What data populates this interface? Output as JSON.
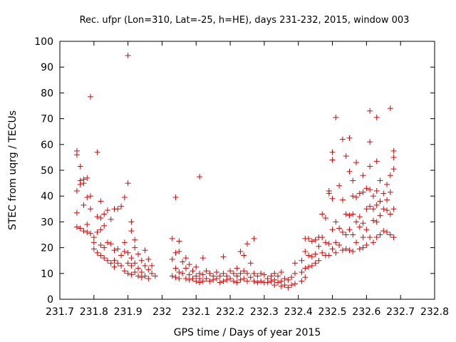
{
  "chart_data": {
    "type": "scatter",
    "title": "Rec. ufpr (Lon=310, Lat=-25, h=HE), days 231-232, 2015, window 003",
    "xlabel": "GPS time / Days of year 2015",
    "ylabel": "STEC from uqrg / TECUs",
    "xlim": [
      231.7,
      232.8
    ],
    "ylim": [
      0,
      100
    ],
    "xticks": [
      231.7,
      231.8,
      231.9,
      232.0,
      232.1,
      232.2,
      232.3,
      232.4,
      232.5,
      232.6,
      232.7,
      232.8
    ],
    "xtick_labels": [
      "231.7",
      "231.8",
      "231.9",
      "232",
      "232.1",
      "232.2",
      "232.3",
      "232.4",
      "232.5",
      "232.6",
      "232.7",
      "232.8"
    ],
    "yticks": [
      0,
      10,
      20,
      30,
      40,
      50,
      60,
      70,
      80,
      90,
      100
    ],
    "ytick_labels": [
      "0",
      "10",
      "20",
      "30",
      "40",
      "50",
      "60",
      "70",
      "80",
      "90",
      "100"
    ],
    "marker": "+",
    "color": "#e00000",
    "grid": false,
    "series": [
      {
        "points": [
          [
            231.75,
            57.5
          ],
          [
            231.75,
            56
          ],
          [
            231.75,
            42
          ],
          [
            231.75,
            33.5
          ],
          [
            231.75,
            28
          ],
          [
            231.76,
            27.5
          ],
          [
            231.76,
            51.5
          ],
          [
            231.76,
            46
          ],
          [
            231.76,
            44.5
          ],
          [
            231.77,
            45
          ],
          [
            231.77,
            46.5
          ],
          [
            231.77,
            36.5
          ],
          [
            231.77,
            26.5
          ],
          [
            231.78,
            47
          ],
          [
            231.78,
            39.5
          ],
          [
            231.78,
            29
          ],
          [
            231.78,
            26
          ],
          [
            231.79,
            40
          ],
          [
            231.79,
            78.5
          ],
          [
            231.79,
            35
          ],
          [
            231.79,
            25.5
          ],
          [
            231.8,
            24
          ],
          [
            231.8,
            22
          ],
          [
            231.8,
            19.5
          ],
          [
            231.81,
            57
          ],
          [
            231.81,
            32
          ],
          [
            231.81,
            26
          ],
          [
            231.81,
            18
          ],
          [
            231.82,
            38
          ],
          [
            231.82,
            31.5
          ],
          [
            231.82,
            27
          ],
          [
            231.82,
            21
          ],
          [
            231.82,
            17
          ],
          [
            231.83,
            33
          ],
          [
            231.83,
            28.5
          ],
          [
            231.83,
            20
          ],
          [
            231.83,
            16
          ],
          [
            231.84,
            34.5
          ],
          [
            231.84,
            22
          ],
          [
            231.84,
            15
          ],
          [
            231.85,
            31
          ],
          [
            231.85,
            21.5
          ],
          [
            231.85,
            14
          ],
          [
            231.86,
            35
          ],
          [
            231.86,
            19
          ],
          [
            231.86,
            15
          ],
          [
            231.86,
            12.5
          ],
          [
            231.87,
            35
          ],
          [
            231.87,
            19.5
          ],
          [
            231.87,
            14
          ],
          [
            231.88,
            36
          ],
          [
            231.88,
            17
          ],
          [
            231.88,
            13
          ],
          [
            231.89,
            39.5
          ],
          [
            231.89,
            22
          ],
          [
            231.89,
            18.5
          ],
          [
            231.89,
            11
          ],
          [
            231.9,
            94.5
          ],
          [
            231.9,
            45
          ],
          [
            231.9,
            18
          ],
          [
            231.9,
            14
          ],
          [
            231.9,
            10
          ],
          [
            231.91,
            30
          ],
          [
            231.91,
            26.5
          ],
          [
            231.91,
            16
          ],
          [
            231.91,
            13
          ],
          [
            231.91,
            9.5
          ],
          [
            231.92,
            23
          ],
          [
            231.92,
            20
          ],
          [
            231.92,
            14
          ],
          [
            231.92,
            10.5
          ],
          [
            231.93,
            17.5
          ],
          [
            231.93,
            12
          ],
          [
            231.93,
            9
          ],
          [
            231.94,
            15
          ],
          [
            231.94,
            10.5
          ],
          [
            231.94,
            8.5
          ],
          [
            231.95,
            19
          ],
          [
            231.95,
            13
          ],
          [
            231.95,
            9
          ],
          [
            231.96,
            15.5
          ],
          [
            231.96,
            11.5
          ],
          [
            231.96,
            8
          ],
          [
            231.97,
            13
          ],
          [
            231.97,
            10
          ],
          [
            231.98,
            9
          ],
          [
            232.03,
            23.5
          ],
          [
            232.03,
            15.5
          ],
          [
            232.03,
            9
          ],
          [
            232.04,
            39.5
          ],
          [
            232.04,
            18
          ],
          [
            232.04,
            12
          ],
          [
            232.04,
            8.5
          ],
          [
            232.05,
            22.5
          ],
          [
            232.05,
            18.5
          ],
          [
            232.05,
            10.5
          ],
          [
            232.05,
            8
          ],
          [
            232.06,
            14.5
          ],
          [
            232.06,
            10
          ],
          [
            232.07,
            16
          ],
          [
            232.07,
            12
          ],
          [
            232.07,
            8
          ],
          [
            232.08,
            13.5
          ],
          [
            232.08,
            9.5
          ],
          [
            232.08,
            7.5
          ],
          [
            232.09,
            11
          ],
          [
            232.09,
            8
          ],
          [
            232.1,
            12.5
          ],
          [
            232.1,
            9
          ],
          [
            232.1,
            7
          ],
          [
            232.11,
            47.5
          ],
          [
            232.11,
            10
          ],
          [
            232.11,
            8
          ],
          [
            232.11,
            6.5
          ],
          [
            232.12,
            16
          ],
          [
            232.12,
            9.5
          ],
          [
            232.12,
            7
          ],
          [
            232.13,
            11
          ],
          [
            232.13,
            8
          ],
          [
            232.14,
            10
          ],
          [
            232.14,
            7
          ],
          [
            232.15,
            9
          ],
          [
            232.15,
            7.5
          ],
          [
            232.16,
            10.5
          ],
          [
            232.16,
            8
          ],
          [
            232.17,
            9
          ],
          [
            232.17,
            6.5
          ],
          [
            232.18,
            16.5
          ],
          [
            232.18,
            10
          ],
          [
            232.18,
            7
          ],
          [
            232.19,
            9
          ],
          [
            232.19,
            7.5
          ],
          [
            232.2,
            11
          ],
          [
            232.2,
            8
          ],
          [
            232.21,
            10
          ],
          [
            232.21,
            7
          ],
          [
            232.22,
            12
          ],
          [
            232.22,
            9
          ],
          [
            232.22,
            6.5
          ],
          [
            232.23,
            18.5
          ],
          [
            232.23,
            10
          ],
          [
            232.23,
            7.5
          ],
          [
            232.24,
            17
          ],
          [
            232.24,
            11
          ],
          [
            232.24,
            8
          ],
          [
            232.25,
            21.5
          ],
          [
            232.25,
            10
          ],
          [
            232.25,
            7
          ],
          [
            232.26,
            14
          ],
          [
            232.26,
            8.5
          ],
          [
            232.27,
            23.5
          ],
          [
            232.27,
            10
          ],
          [
            232.27,
            7
          ],
          [
            232.28,
            9
          ],
          [
            232.28,
            6.5
          ],
          [
            232.29,
            10
          ],
          [
            232.29,
            7
          ],
          [
            232.3,
            9.5
          ],
          [
            232.3,
            6.5
          ],
          [
            232.31,
            8
          ],
          [
            232.31,
            6.5
          ],
          [
            232.32,
            9
          ],
          [
            232.32,
            7
          ],
          [
            232.33,
            10
          ],
          [
            232.33,
            7.5
          ],
          [
            232.33,
            5.5
          ],
          [
            232.34,
            9
          ],
          [
            232.34,
            6.5
          ],
          [
            232.35,
            10.5
          ],
          [
            232.35,
            7
          ],
          [
            232.35,
            5
          ],
          [
            232.36,
            8
          ],
          [
            232.36,
            5.5
          ],
          [
            232.37,
            7.5
          ],
          [
            232.37,
            4.5
          ],
          [
            232.38,
            8.5
          ],
          [
            232.38,
            5.5
          ],
          [
            232.39,
            14
          ],
          [
            232.39,
            10
          ],
          [
            232.39,
            6
          ],
          [
            232.41,
            15
          ],
          [
            232.41,
            10.5
          ],
          [
            232.41,
            7
          ],
          [
            232.42,
            23.5
          ],
          [
            232.42,
            18.5
          ],
          [
            232.42,
            12
          ],
          [
            232.42,
            8.5
          ],
          [
            232.43,
            23.5
          ],
          [
            232.43,
            17
          ],
          [
            232.43,
            12.5
          ],
          [
            232.44,
            22.5
          ],
          [
            232.44,
            16.5
          ],
          [
            232.44,
            13
          ],
          [
            232.45,
            23
          ],
          [
            232.45,
            17.5
          ],
          [
            232.45,
            14
          ],
          [
            232.46,
            24
          ],
          [
            232.46,
            20.5
          ],
          [
            232.46,
            15
          ],
          [
            232.47,
            33
          ],
          [
            232.47,
            24
          ],
          [
            232.47,
            18
          ],
          [
            232.48,
            31.5
          ],
          [
            232.48,
            22
          ],
          [
            232.48,
            17
          ],
          [
            232.49,
            42
          ],
          [
            232.49,
            41
          ],
          [
            232.49,
            21.5
          ],
          [
            232.49,
            17
          ],
          [
            232.5,
            57
          ],
          [
            232.5,
            54
          ],
          [
            232.5,
            39
          ],
          [
            232.5,
            27
          ],
          [
            232.5,
            19.5
          ],
          [
            232.51,
            70.5
          ],
          [
            232.51,
            30
          ],
          [
            232.51,
            22
          ],
          [
            232.51,
            18
          ],
          [
            232.52,
            44
          ],
          [
            232.52,
            27.5
          ],
          [
            232.52,
            21
          ],
          [
            232.53,
            62
          ],
          [
            232.53,
            38.5
          ],
          [
            232.53,
            26
          ],
          [
            232.53,
            19
          ],
          [
            232.54,
            55.5
          ],
          [
            232.54,
            33
          ],
          [
            232.54,
            25
          ],
          [
            232.54,
            19.5
          ],
          [
            232.55,
            62.5
          ],
          [
            232.55,
            49.5
          ],
          [
            232.55,
            32.5
          ],
          [
            232.55,
            27
          ],
          [
            232.55,
            19
          ],
          [
            232.56,
            46
          ],
          [
            232.56,
            40
          ],
          [
            232.56,
            33
          ],
          [
            232.56,
            25
          ],
          [
            232.56,
            18.5
          ],
          [
            232.57,
            53
          ],
          [
            232.57,
            39.5
          ],
          [
            232.57,
            30
          ],
          [
            232.57,
            22
          ],
          [
            232.58,
            41
          ],
          [
            232.58,
            32
          ],
          [
            232.58,
            28
          ],
          [
            232.58,
            19.5
          ],
          [
            232.59,
            48
          ],
          [
            232.59,
            41.5
          ],
          [
            232.59,
            29.5
          ],
          [
            232.59,
            24
          ],
          [
            232.59,
            20
          ],
          [
            232.6,
            43
          ],
          [
            232.6,
            35
          ],
          [
            232.6,
            27
          ],
          [
            232.6,
            21
          ],
          [
            232.61,
            73
          ],
          [
            232.61,
            61
          ],
          [
            232.61,
            51.5
          ],
          [
            232.61,
            42.5
          ],
          [
            232.61,
            36
          ],
          [
            232.61,
            24
          ],
          [
            232.62,
            40
          ],
          [
            232.62,
            35
          ],
          [
            232.62,
            30.5
          ],
          [
            232.62,
            22
          ],
          [
            232.63,
            70.5
          ],
          [
            232.63,
            53.5
          ],
          [
            232.63,
            42
          ],
          [
            232.63,
            36.5
          ],
          [
            232.63,
            30
          ],
          [
            232.63,
            24
          ],
          [
            232.64,
            46
          ],
          [
            232.64,
            38
          ],
          [
            232.64,
            32.5
          ],
          [
            232.64,
            25
          ],
          [
            232.65,
            41
          ],
          [
            232.65,
            35
          ],
          [
            232.65,
            26.5
          ],
          [
            232.66,
            44.5
          ],
          [
            232.66,
            38.5
          ],
          [
            232.66,
            34.5
          ],
          [
            232.66,
            26
          ],
          [
            232.67,
            74
          ],
          [
            232.67,
            48
          ],
          [
            232.67,
            41.5
          ],
          [
            232.67,
            33
          ],
          [
            232.67,
            25
          ],
          [
            232.68,
            57.5
          ],
          [
            232.68,
            55
          ],
          [
            232.68,
            50.5
          ],
          [
            232.68,
            35
          ],
          [
            232.68,
            24
          ]
        ]
      }
    ]
  }
}
